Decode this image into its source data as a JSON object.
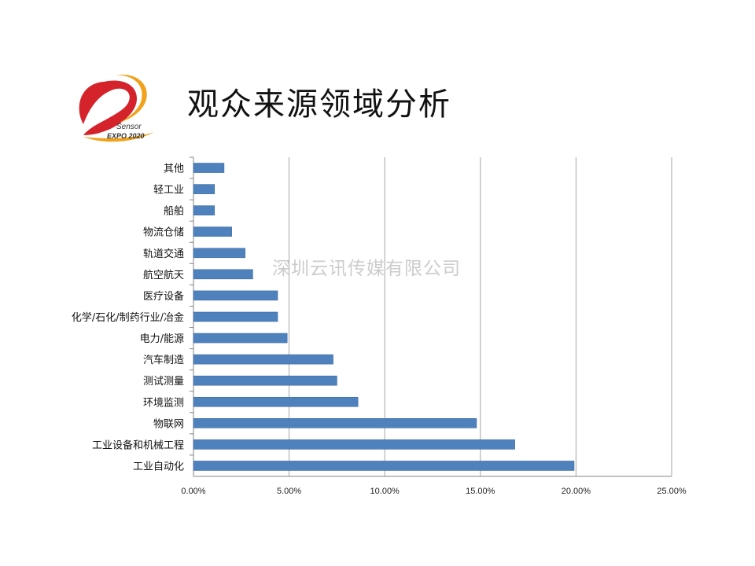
{
  "page": {
    "title": "观众来源领域分析",
    "watermark": "深圳云讯传媒有限公司"
  },
  "logo": {
    "line1": "Sensor",
    "line2": "EXPO 2020"
  },
  "chart_data": {
    "type": "bar",
    "orientation": "horizontal",
    "categories": [
      "其他",
      "轻工业",
      "船舶",
      "物流仓储",
      "轨道交通",
      "航空航天",
      "医疗设备",
      "化学/石化/制药行业/冶金",
      "电力/能源",
      "汽车制造",
      "测试测量",
      "环境监测",
      "物联网",
      "工业设备和机械工程",
      "工业自动化"
    ],
    "values": [
      1.6,
      1.1,
      1.1,
      2.0,
      2.7,
      3.1,
      4.4,
      4.4,
      4.9,
      7.3,
      7.5,
      8.6,
      14.8,
      16.8,
      19.9
    ],
    "xlim": [
      0,
      25
    ],
    "xticks": [
      "0.00%",
      "5.00%",
      "10.00%",
      "15.00%",
      "20.00%",
      "25.00%"
    ],
    "grid": true,
    "colors": {
      "bar": "#4f81bd",
      "bar_edge": "#3a6aa3",
      "grid": "#a6a6a6",
      "axis": "#868686"
    }
  }
}
